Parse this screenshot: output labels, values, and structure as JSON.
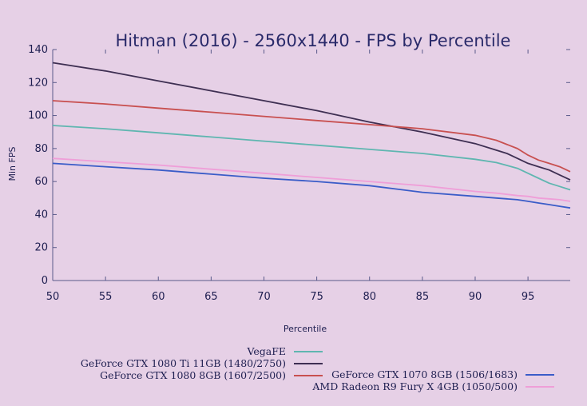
{
  "chart_data": {
    "type": "line",
    "title": "Hitman (2016) - 2560x1440 - FPS by Percentile",
    "xlabel": "Percentile",
    "ylabel": "Min FPS",
    "xlim": [
      50,
      99
    ],
    "ylim": [
      0,
      140
    ],
    "x_ticks": [
      "50",
      "55",
      "60",
      "65",
      "70",
      "75",
      "80",
      "85",
      "90",
      "95"
    ],
    "y_ticks": [
      "0",
      "20",
      "40",
      "60",
      "80",
      "100",
      "120",
      "140"
    ],
    "grid": false,
    "legend_position": "bottom",
    "series": [
      {
        "name": "VegaFE",
        "color": "#5fb6b0",
        "x": [
          50,
          55,
          60,
          65,
          70,
          75,
          80,
          85,
          90,
          92,
          94,
          95,
          96,
          97,
          98,
          99
        ],
        "y": [
          94,
          92,
          89.5,
          87,
          84.5,
          82,
          79.5,
          77,
          73.5,
          71.5,
          68,
          65,
          62,
          59,
          57,
          55
        ]
      },
      {
        "name": "GeForce GTX 1080 Ti 11GB (1480/2750)",
        "color": "#3e2f52",
        "x": [
          50,
          55,
          60,
          65,
          70,
          75,
          80,
          85,
          90,
          92,
          93,
          94,
          95,
          96,
          97,
          98,
          99
        ],
        "y": [
          132,
          127,
          121,
          115,
          109,
          103,
          96,
          90,
          83,
          79,
          77,
          74,
          71,
          69,
          67,
          64,
          61
        ]
      },
      {
        "name": "GeForce GTX 1080 8GB (1607/2500)",
        "color": "#c85050",
        "x": [
          50,
          55,
          60,
          65,
          70,
          75,
          80,
          85,
          90,
          92,
          94,
          95,
          96,
          97,
          98,
          99
        ],
        "y": [
          109,
          107,
          104.5,
          102,
          99.5,
          97,
          94.5,
          92,
          88,
          85,
          80,
          76,
          73,
          71,
          69,
          66
        ]
      },
      {
        "name": "GeForce GTX 1070 8GB (1506/1683)",
        "color": "#3a5cc8",
        "x": [
          50,
          55,
          60,
          65,
          70,
          75,
          80,
          85,
          90,
          92,
          94,
          95,
          96,
          97,
          98,
          99
        ],
        "y": [
          71,
          69,
          67,
          64.5,
          62,
          60,
          57.5,
          53.5,
          51,
          50,
          49,
          48,
          47,
          46,
          45,
          44
        ]
      },
      {
        "name": "AMD Radeon R9 Fury X 4GB (1050/500)",
        "color": "#ef9ed8",
        "x": [
          50,
          55,
          60,
          65,
          70,
          75,
          80,
          85,
          90,
          92,
          94,
          95,
          96,
          97,
          98,
          99
        ],
        "y": [
          74,
          72,
          70,
          67.5,
          65,
          62.5,
          60,
          57.5,
          54,
          53,
          51.5,
          51,
          50,
          49.5,
          49,
          48
        ]
      }
    ]
  }
}
